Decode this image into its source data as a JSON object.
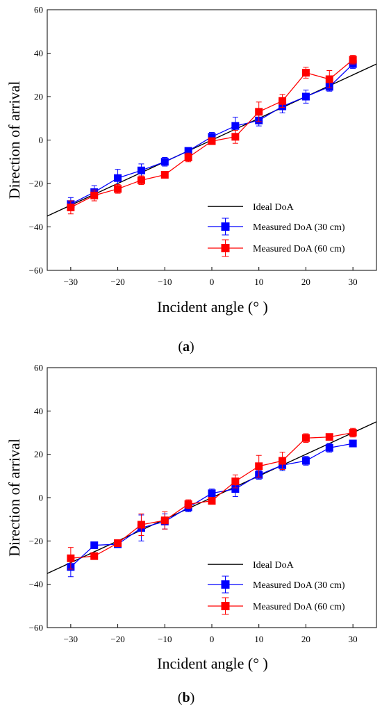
{
  "chart_data": [
    {
      "type": "line",
      "panel_label": "(a)",
      "xlabel": "Incident angle (° )",
      "ylabel": "Direction of arrival",
      "xlim": [
        -35,
        35
      ],
      "ylim": [
        -60,
        60
      ],
      "xticks": [
        "-30",
        "-20",
        "-10",
        "0",
        "10",
        "20",
        "30"
      ],
      "yticks": [
        "60",
        "40",
        "20",
        "0",
        "-20",
        "-40",
        "-60"
      ],
      "grid": false,
      "legend_position": "lower-right",
      "ideal": {
        "name": "Ideal DoA",
        "x": [
          -35,
          35
        ],
        "y": [
          -35,
          35
        ],
        "color": "#000000"
      },
      "series": [
        {
          "name": "Measured DoA (30 cm)",
          "color": "#0000ff",
          "x": [
            -30,
            -25,
            -20,
            -15,
            -10,
            -5,
            0,
            5,
            10,
            15,
            20,
            25,
            30
          ],
          "y": [
            -29.5,
            -24,
            -17.5,
            -14,
            -10,
            -5,
            1.5,
            6.5,
            9,
            15.5,
            20,
            24.5,
            35
          ],
          "err": [
            3,
            3,
            4,
            3,
            2,
            1.5,
            2,
            4,
            2.5,
            3,
            3,
            2,
            2
          ]
        },
        {
          "name": "Measured DoA (60 cm)",
          "color": "#ff0000",
          "x": [
            -30,
            -25,
            -20,
            -15,
            -10,
            -5,
            0,
            5,
            10,
            15,
            20,
            25,
            30
          ],
          "y": [
            -31,
            -25.5,
            -22.5,
            -18.5,
            -16,
            -8,
            -0.5,
            1.5,
            13,
            18,
            31,
            28,
            37
          ],
          "err": [
            3,
            2.5,
            2,
            2,
            1.5,
            2,
            1.5,
            3,
            4.5,
            3,
            2.5,
            4,
            2
          ]
        }
      ]
    },
    {
      "type": "line",
      "panel_label": "(b)",
      "xlabel": "Incident angle (° )",
      "ylabel": "Direction of arrival",
      "xlim": [
        -35,
        35
      ],
      "ylim": [
        -60,
        60
      ],
      "xticks": [
        "-30",
        "-20",
        "-10",
        "0",
        "10",
        "20",
        "30"
      ],
      "yticks": [
        "60",
        "40",
        "20",
        "0",
        "-20",
        "-40",
        "-60"
      ],
      "grid": false,
      "legend_position": "lower-right",
      "ideal": {
        "name": "Ideal DoA",
        "x": [
          -35,
          35
        ],
        "y": [
          -35,
          35
        ],
        "color": "#000000"
      },
      "series": [
        {
          "name": "Measured DoA (30 cm)",
          "color": "#0000ff",
          "x": [
            -30,
            -25,
            -20,
            -15,
            -10,
            -5,
            0,
            5,
            10,
            15,
            20,
            25,
            30
          ],
          "y": [
            -32,
            -22,
            -21.5,
            -14,
            -11,
            -4.5,
            2,
            4,
            10.5,
            15,
            17,
            23,
            25
          ],
          "err": [
            4.5,
            1,
            1.5,
            6,
            3.5,
            2,
            2,
            3.5,
            2,
            2.5,
            2,
            2,
            1.5
          ]
        },
        {
          "name": "Measured DoA (60 cm)",
          "color": "#ff0000",
          "x": [
            -30,
            -25,
            -20,
            -15,
            -10,
            -5,
            0,
            5,
            10,
            15,
            20,
            25,
            30
          ],
          "y": [
            -28,
            -27,
            -21,
            -12.5,
            -10.5,
            -3,
            -1.5,
            7.5,
            14.5,
            17,
            27.5,
            28,
            30
          ],
          "err": [
            5,
            1.5,
            1.5,
            5,
            4,
            2,
            1.5,
            3,
            5,
            4,
            2,
            1.5,
            2
          ]
        }
      ]
    }
  ]
}
